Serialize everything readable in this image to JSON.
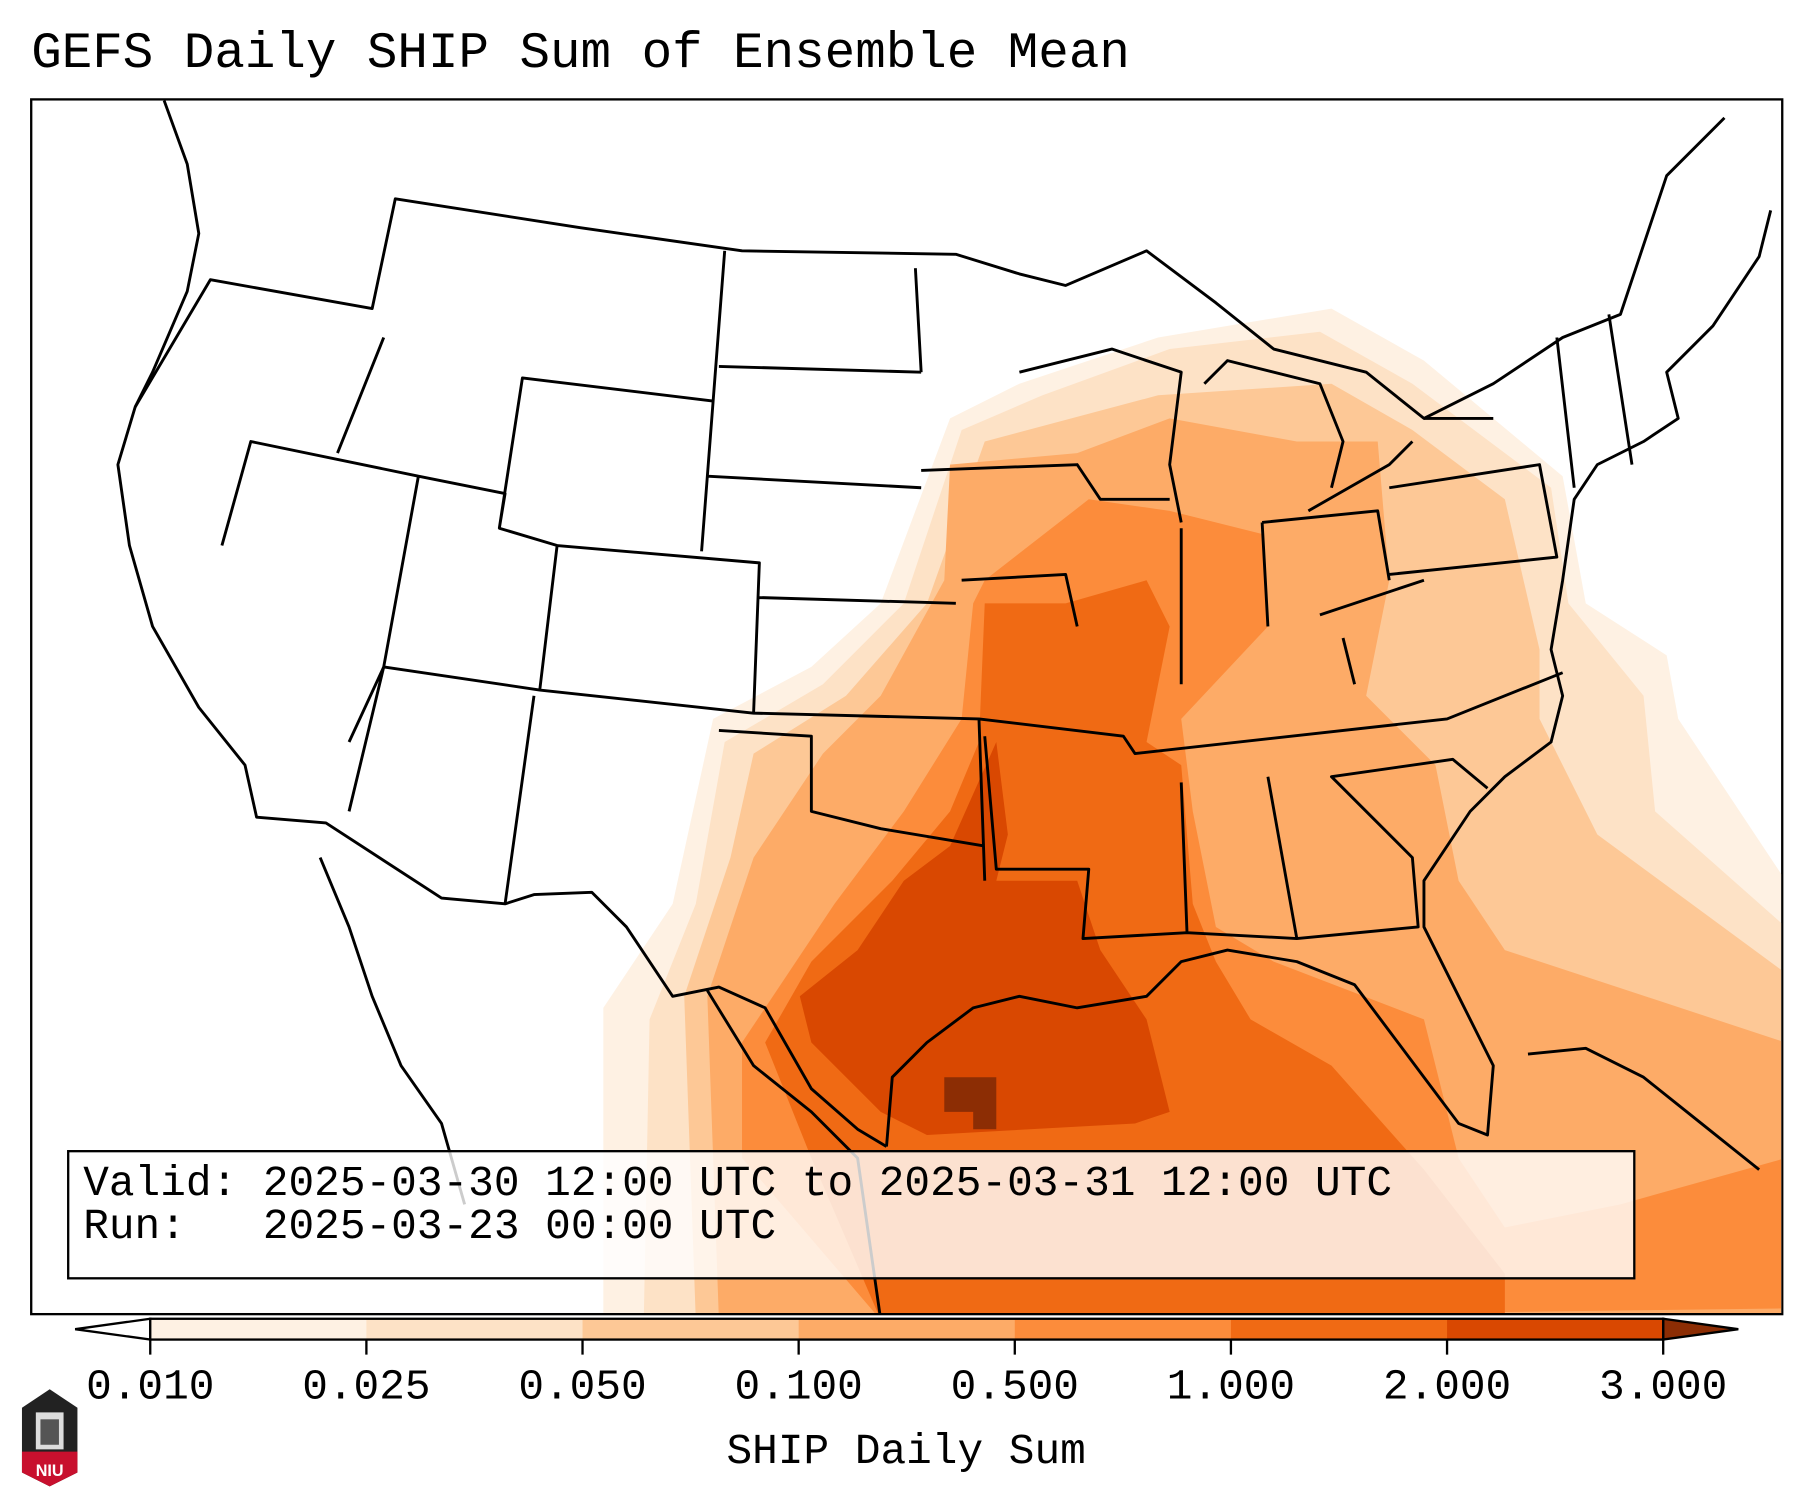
{
  "title": "GEFS Daily SHIP Sum of Ensemble Mean",
  "info": {
    "valid_line": "Valid: 2025-03-30 12:00 UTC to 2025-03-31 12:00 UTC",
    "run_line": "Run:   2025-03-23 00:00 UTC"
  },
  "colorbar": {
    "label": "SHIP Daily Sum",
    "ticks": [
      "0.010",
      "0.025",
      "0.050",
      "0.100",
      "0.500",
      "1.000",
      "2.000",
      "3.000"
    ],
    "colors": [
      "#fef1e3",
      "#fde2c6",
      "#fdc896",
      "#fdab67",
      "#fc8c3b",
      "#f06a14",
      "#d94801",
      "#8c2d04"
    ],
    "extend": "both"
  },
  "logo": {
    "text": "NIU"
  }
}
